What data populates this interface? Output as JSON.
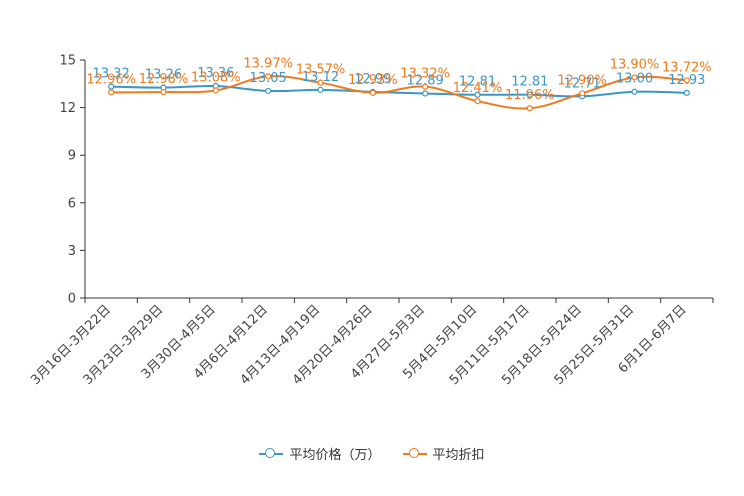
{
  "chart_data": {
    "type": "line",
    "categories": [
      "3月16日-3月22日",
      "3月23日-3月29日",
      "3月30日-4月5日",
      "4月6日-4月12日",
      "4月13日-4月19日",
      "4月20日-4月26日",
      "4月27日-5月3日",
      "5月4日-5月10日",
      "5月11日-5月17日",
      "5月18日-5月24日",
      "5月25日-5月31日",
      "6月1日-6月7日"
    ],
    "series": [
      {
        "name": "平均价格（万）",
        "color": "#3a96c8",
        "values": [
          13.32,
          13.26,
          13.36,
          13.05,
          13.12,
          12.99,
          12.89,
          12.81,
          12.81,
          12.71,
          13.0,
          12.93
        ],
        "labels": [
          "13.32",
          "13.26",
          "13.36",
          "13.05",
          "13.12",
          "12.99",
          "12.89",
          "12.81",
          "12.81",
          "12.71",
          "13.00",
          "12.93"
        ]
      },
      {
        "name": "平均折扣",
        "color": "#f07a1c",
        "values": [
          12.96,
          12.98,
          13.08,
          13.97,
          13.57,
          12.93,
          13.32,
          12.41,
          11.96,
          12.9,
          13.9,
          13.72
        ],
        "labels": [
          "12.96%",
          "12.98%",
          "13.08%",
          "13.97%",
          "13.57%",
          "12.93%",
          "13.32%",
          "12.41%",
          "11.96%",
          "12.90%",
          "13.90%",
          "13.72%"
        ]
      }
    ],
    "yticks": [
      0,
      3,
      6,
      9,
      12,
      15
    ],
    "ylim": [
      0,
      15
    ],
    "grid": false,
    "legend_position": "bottom-center"
  }
}
